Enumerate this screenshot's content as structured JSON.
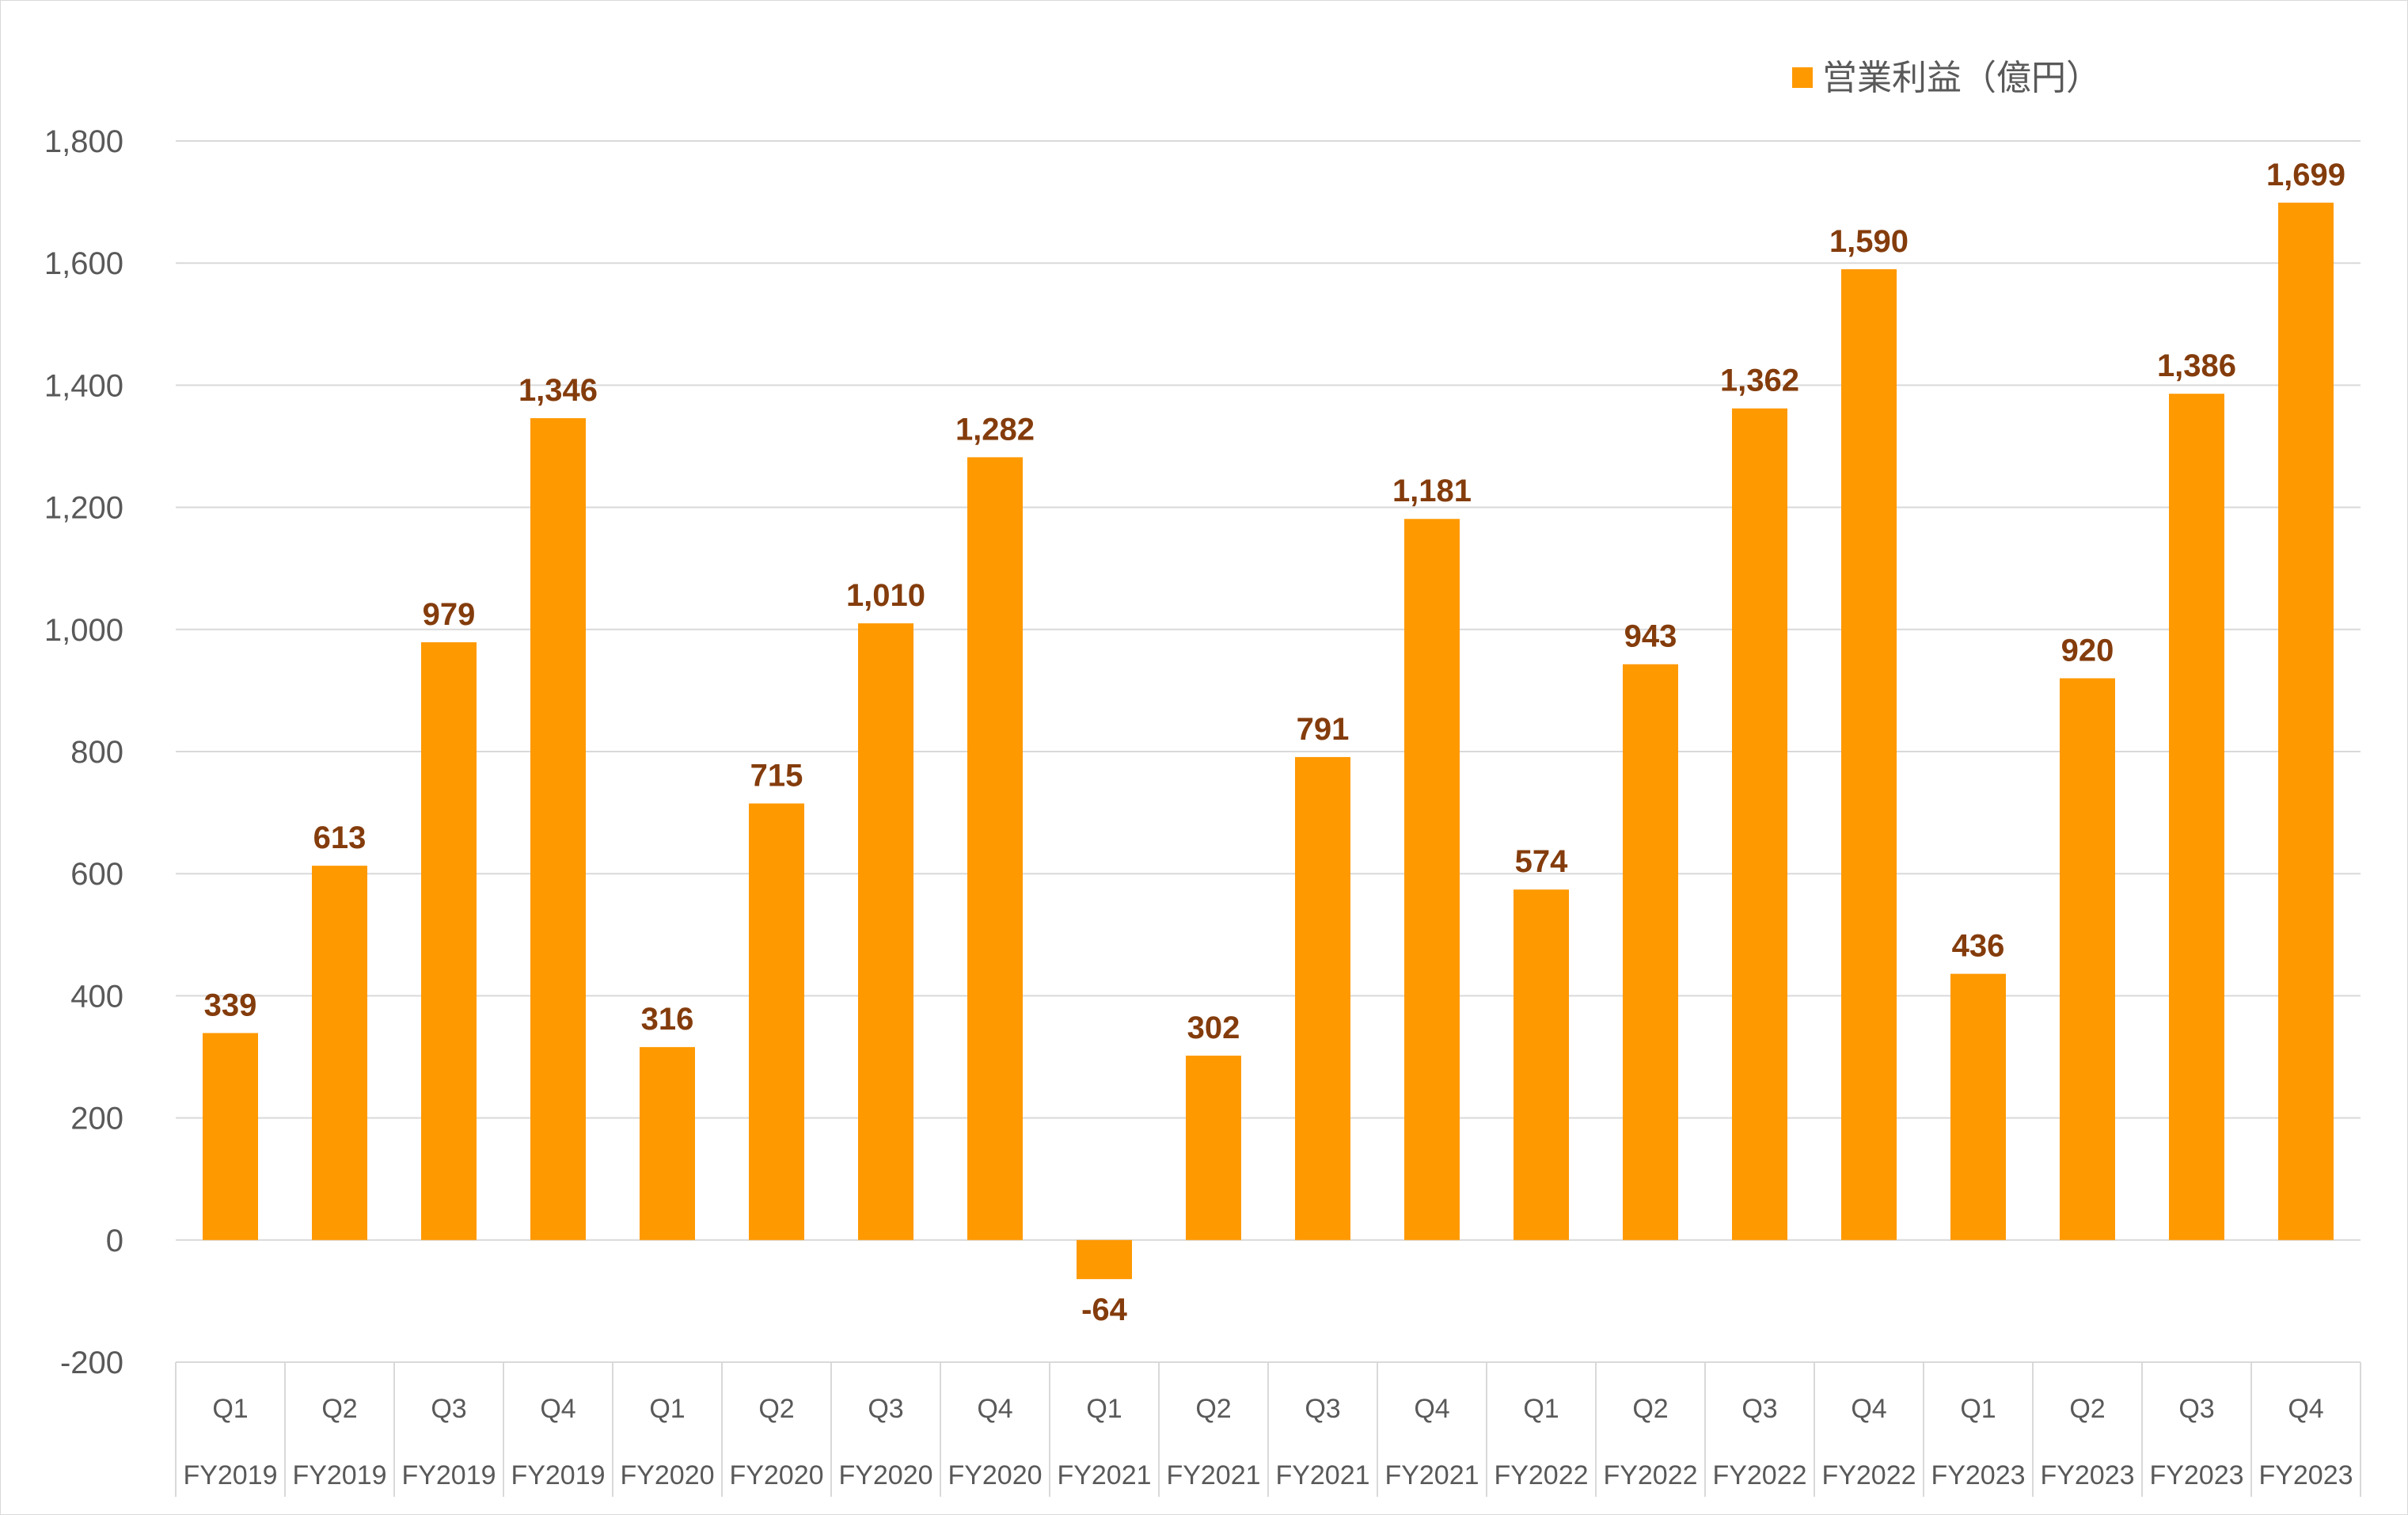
{
  "chart_data": {
    "type": "bar",
    "legend": {
      "label": "営業利益（億円）",
      "placement": "top-right"
    },
    "color": "#ff9900",
    "label_color": "#843c0c",
    "ylim": [
      -200,
      1800
    ],
    "yticks": [
      -200,
      0,
      200,
      400,
      600,
      800,
      1000,
      1200,
      1400,
      1600,
      1800
    ],
    "ytick_labels": [
      "-200",
      "0",
      "200",
      "400",
      "600",
      "800",
      "1,000",
      "1,200",
      "1,400",
      "1,600",
      "1,800"
    ],
    "grid": true,
    "categories": [
      {
        "quarter": "Q1",
        "year": "FY2019"
      },
      {
        "quarter": "Q2",
        "year": "FY2019"
      },
      {
        "quarter": "Q3",
        "year": "FY2019"
      },
      {
        "quarter": "Q4",
        "year": "FY2019"
      },
      {
        "quarter": "Q1",
        "year": "FY2020"
      },
      {
        "quarter": "Q2",
        "year": "FY2020"
      },
      {
        "quarter": "Q3",
        "year": "FY2020"
      },
      {
        "quarter": "Q4",
        "year": "FY2020"
      },
      {
        "quarter": "Q1",
        "year": "FY2021"
      },
      {
        "quarter": "Q2",
        "year": "FY2021"
      },
      {
        "quarter": "Q3",
        "year": "FY2021"
      },
      {
        "quarter": "Q4",
        "year": "FY2021"
      },
      {
        "quarter": "Q1",
        "year": "FY2022"
      },
      {
        "quarter": "Q2",
        "year": "FY2022"
      },
      {
        "quarter": "Q3",
        "year": "FY2022"
      },
      {
        "quarter": "Q4",
        "year": "FY2022"
      },
      {
        "quarter": "Q1",
        "year": "FY2023"
      },
      {
        "quarter": "Q2",
        "year": "FY2023"
      },
      {
        "quarter": "Q3",
        "year": "FY2023"
      },
      {
        "quarter": "Q4",
        "year": "FY2023"
      }
    ],
    "values": [
      339,
      613,
      979,
      1346,
      316,
      715,
      1010,
      1282,
      -64,
      302,
      791,
      1181,
      574,
      943,
      1362,
      1590,
      436,
      920,
      1386,
      1699
    ],
    "value_labels": [
      "339",
      "613",
      "979",
      "1,346",
      "316",
      "715",
      "1,010",
      "1,282",
      "-64",
      "302",
      "791",
      "1,181",
      "574",
      "943",
      "1,362",
      "1,590",
      "436",
      "920",
      "1,386",
      "1,699"
    ]
  }
}
